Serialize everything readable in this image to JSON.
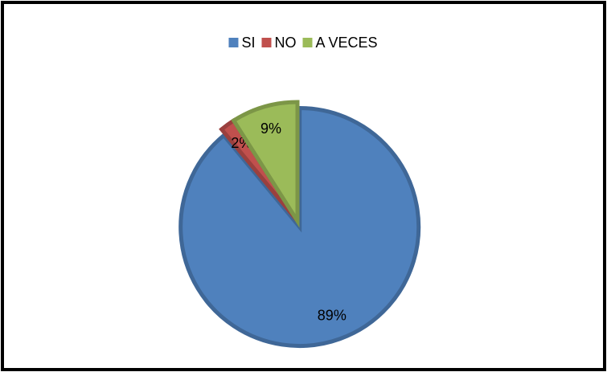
{
  "chart_data": {
    "type": "pie",
    "categories": [
      "SI",
      "NO",
      "A VECES"
    ],
    "values": [
      89,
      2,
      9
    ],
    "value_labels": [
      "89%",
      "2%",
      "9%"
    ],
    "colors": [
      "#4f81bd",
      "#c0504d",
      "#9bbb59"
    ],
    "legend": "top"
  }
}
